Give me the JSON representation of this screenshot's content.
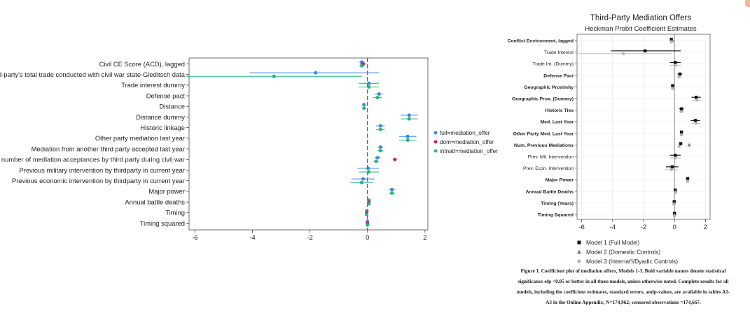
{
  "left_chart": {
    "legend": [
      {
        "label": "full=mediation_offer",
        "color": "#3a86e0"
      },
      {
        "label": "dom=mediation_offer",
        "color": "#cc1f5e"
      },
      {
        "label": "intnatl=mediation_offer",
        "color": "#21b57b"
      }
    ]
  },
  "right_chart": {
    "legend": [
      {
        "label": "Model 1 (Full Model)",
        "marker": "square"
      },
      {
        "label": "Model 2 (Domestic Controls)",
        "marker": "triangle"
      },
      {
        "label": "Model 3 (Internat'l/Dyadic Controls)",
        "marker": "circle"
      }
    ]
  },
  "caption": "Figure 1. Coefficient plot of mediation offers, Models 1-3. Bold variable names denote statistical significance ofp <0.05 or better in all three models, unless otherwise noted. Complete results for all models, including the coefficient estimates, standard errors, andp-values, are available in tables A1-A3 in the Online Appendix; N=174,962; censored observations =174,667.",
  "chart_data": [
    {
      "type": "scatter",
      "subtype": "coefficient-plot",
      "title": "",
      "xlabel": "",
      "ylabel": "",
      "xlim": [
        -6.2,
        2.1
      ],
      "xticks": [
        -6,
        -4,
        -2,
        0,
        2
      ],
      "reference_line": 0,
      "grid": false,
      "legend_position": "right",
      "categories": [
        "Civil CE Score (ACD), lagged",
        "Ratio of third-party's total trade conducted with civil war state-Gleditsch data",
        "Trade interest dummy",
        "Defense pact",
        "Distance",
        "Distance dummy",
        "Historic linkage",
        "Other party mediation last year",
        "Mediation from another third party accepted last year",
        "Total number of mediation acceptances by third party during civil war",
        "Previous military intervention by thirdparty in current year",
        "Previous economic intervention by thirdparty in current year",
        "Major power",
        "Annual battle deaths",
        "Timing",
        "Timing squared"
      ],
      "series": [
        {
          "name": "full=mediation_offer",
          "color": "#3a86e0",
          "values": [
            -0.2,
            -1.8,
            0.05,
            0.4,
            -0.12,
            1.45,
            0.45,
            1.4,
            0.45,
            0.35,
            0.02,
            -0.15,
            0.85,
            0.05,
            -0.02,
            0.0
          ],
          "ci_low": [
            -0.3,
            -4.1,
            -0.3,
            0.25,
            -0.18,
            1.15,
            0.3,
            1.1,
            0.35,
            0.25,
            -0.35,
            -0.55,
            0.75,
            0.02,
            -0.05,
            -0.02
          ],
          "ci_high": [
            -0.1,
            0.4,
            0.4,
            0.55,
            -0.06,
            1.75,
            0.6,
            1.7,
            0.55,
            0.45,
            0.4,
            0.25,
            0.95,
            0.08,
            0.01,
            0.02
          ]
        },
        {
          "name": "dom=mediation_offer",
          "color": "#cc1f5e",
          "values": [
            -0.15,
            null,
            null,
            null,
            null,
            null,
            null,
            null,
            null,
            0.95,
            null,
            null,
            null,
            0.05,
            -0.03,
            0.0
          ],
          "ci_low": [
            -0.25,
            null,
            null,
            null,
            null,
            null,
            null,
            null,
            null,
            0.88,
            null,
            null,
            null,
            0.02,
            -0.06,
            -0.02
          ],
          "ci_high": [
            -0.05,
            null,
            null,
            null,
            null,
            null,
            null,
            null,
            null,
            1.02,
            null,
            null,
            null,
            0.08,
            0.0,
            0.02
          ]
        },
        {
          "name": "intnatl=mediation_offer",
          "color": "#21b57b",
          "values": [
            -0.2,
            -3.25,
            0.05,
            0.35,
            -0.12,
            1.45,
            0.45,
            1.4,
            0.45,
            0.3,
            0.05,
            -0.2,
            0.85,
            0.05,
            -0.03,
            0.0
          ],
          "ci_low": [
            -0.3,
            -6.3,
            -0.3,
            0.2,
            -0.18,
            1.15,
            0.3,
            1.1,
            0.35,
            0.2,
            -0.3,
            -0.6,
            0.75,
            0.02,
            -0.06,
            -0.02
          ],
          "ci_high": [
            -0.1,
            -0.2,
            0.4,
            0.5,
            -0.06,
            1.75,
            0.6,
            1.7,
            0.55,
            0.4,
            0.4,
            0.2,
            0.95,
            0.08,
            0.0,
            0.02
          ]
        }
      ]
    },
    {
      "type": "scatter",
      "subtype": "coefficient-plot",
      "title": "Third-Party Mediation Offers",
      "subtitle": "Heckman Probit Coefficient Estimates",
      "xlabel": "",
      "ylabel": "",
      "xlim": [
        -6.3,
        2.3
      ],
      "xticks": [
        -6,
        -4,
        -2,
        0,
        2
      ],
      "reference_line": 0,
      "grid": true,
      "legend_position": "bottom",
      "categories": [
        {
          "label": "Conflict Environment, lagged",
          "bold": true
        },
        {
          "label": "Trade Interest",
          "bold": false
        },
        {
          "label": "Trade Int. (Dummy)",
          "bold": false
        },
        {
          "label": "Defense Pact",
          "bold": true
        },
        {
          "label": "Geographic Proximity",
          "bold": true
        },
        {
          "label": "Geographic Prox. (Dummy)",
          "bold": true
        },
        {
          "label": "Historic Ties",
          "bold": true
        },
        {
          "label": "Med. Last Year",
          "bold": true
        },
        {
          "label": "Other Party Med. Last Year",
          "bold": true
        },
        {
          "label": "Num. Previous Mediations",
          "bold": true
        },
        {
          "label": "Prev. Mil. Intervention",
          "bold": false
        },
        {
          "label": "Prev. Econ. Intervention",
          "bold": false
        },
        {
          "label": "Major Power",
          "bold": true
        },
        {
          "label": "Annual Battle Deaths",
          "bold": true
        },
        {
          "label": "Timing (Years)",
          "bold": true
        },
        {
          "label": "Timing Squared",
          "bold": true
        }
      ],
      "series": [
        {
          "name": "Model 1 (Full Model)",
          "marker": "square",
          "color": "#111111",
          "values": [
            -0.2,
            -1.9,
            0.05,
            0.35,
            -0.12,
            1.4,
            0.45,
            1.35,
            0.45,
            0.4,
            0.05,
            -0.15,
            0.85,
            0.05,
            -0.02,
            0.0
          ],
          "ci_low": [
            -0.3,
            -4.1,
            -0.3,
            0.2,
            -0.18,
            1.1,
            0.3,
            1.05,
            0.35,
            0.3,
            -0.3,
            -0.55,
            0.75,
            0.02,
            -0.05,
            -0.02
          ],
          "ci_high": [
            -0.1,
            0.4,
            0.4,
            0.5,
            -0.06,
            1.7,
            0.6,
            1.65,
            0.55,
            0.5,
            0.4,
            0.25,
            0.95,
            0.08,
            0.01,
            0.02
          ]
        },
        {
          "name": "Model 2 (Domestic Controls)",
          "marker": "triangle",
          "color": "#777777",
          "values": [
            -0.15,
            null,
            null,
            null,
            null,
            null,
            null,
            null,
            null,
            0.95,
            null,
            null,
            null,
            0.05,
            -0.03,
            0.0
          ],
          "ci_low": [
            -0.25,
            null,
            null,
            null,
            null,
            null,
            null,
            null,
            null,
            0.88,
            null,
            null,
            null,
            0.02,
            -0.06,
            -0.02
          ],
          "ci_high": [
            -0.05,
            null,
            null,
            null,
            null,
            null,
            null,
            null,
            null,
            1.02,
            null,
            null,
            null,
            0.08,
            0.0,
            0.02
          ]
        },
        {
          "name": "Model 3 (Internat'l/Dyadic Controls)",
          "marker": "circle",
          "color": "#b5b5b5",
          "values": [
            -0.2,
            -3.3,
            0.05,
            0.3,
            -0.12,
            1.45,
            0.45,
            1.4,
            0.45,
            0.3,
            0.05,
            -0.2,
            0.85,
            0.05,
            -0.03,
            0.0
          ],
          "ci_low": [
            -0.3,
            -6.3,
            -0.3,
            0.15,
            -0.18,
            1.15,
            0.3,
            1.1,
            0.35,
            0.2,
            -0.3,
            -0.6,
            0.75,
            0.02,
            -0.06,
            -0.02
          ],
          "ci_high": [
            -0.1,
            -0.2,
            0.4,
            0.45,
            -0.06,
            1.75,
            0.6,
            1.7,
            0.55,
            0.4,
            0.4,
            0.2,
            0.95,
            0.08,
            0.0,
            0.02
          ]
        }
      ]
    }
  ]
}
